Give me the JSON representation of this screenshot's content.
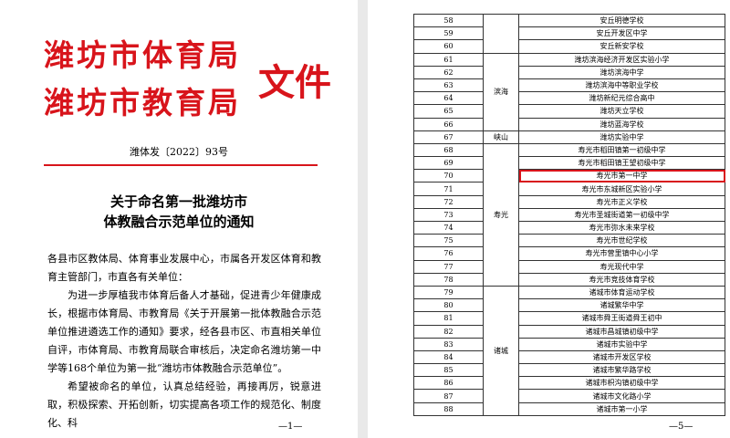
{
  "left_page": {
    "header": {
      "line1": "潍坊市体育局",
      "line2": "潍坊市教育局",
      "suffix": "文件"
    },
    "doc_number": "潍体发〔2022〕93号",
    "title": {
      "line1": "关于命名第一批潍坊市",
      "line2": "体教融合示范单位的通知"
    },
    "paragraphs": [
      "各县市区教体局、体育事业发展中心，市属各开发区体育和教育主管部门，市直各有关单位：",
      "为进一步厚植我市体育后备人才基础，促进青少年健康成长，根据市体育局、市教育局《关于开展第一批体教融合示范单位推进遴选工作的通知》要求，经各县市区、市直相关单位自评，市体育局、市教育局联合审核后，决定命名潍坊第一中学等168个单位为第一批“潍坊市体教融合示范单位”。",
      "希望被命名的单位，认真总结经验，再接再厉，锐意进取，积极探索、开拓创新，切实提高各项工作的规范化、制度化、科"
    ],
    "page_number": "—1—"
  },
  "right_page": {
    "groups": [
      {
        "region": null,
        "rows": [
          [
            "58",
            "安丘明德学校"
          ],
          [
            "59",
            "安丘开发区中学"
          ],
          [
            "60",
            "安丘新安学校"
          ]
        ]
      },
      {
        "region": "滨海",
        "rows": [
          [
            "61",
            "潍坊滨海经济开发区实验小学"
          ],
          [
            "62",
            "潍坊滨海中学"
          ],
          [
            "63",
            "潍坊滨海中等职业学校"
          ],
          [
            "64",
            "潍坊新纪元综合高中"
          ],
          [
            "65",
            "潍坊天立学校"
          ],
          [
            "66",
            "潍坊蓝海学校"
          ]
        ]
      },
      {
        "region": "峡山",
        "rows": [
          [
            "67",
            "潍坊实验中学"
          ]
        ]
      },
      {
        "region": "寿光",
        "rows": [
          [
            "68",
            "寿光市稻田镇第一初级中学"
          ],
          [
            "69",
            "寿光市稻田镇王望初级中学"
          ],
          [
            "70",
            "寿光市第一中学"
          ],
          [
            "71",
            "寿光市东城新区实验小学"
          ],
          [
            "72",
            "寿光市正义学校"
          ],
          [
            "73",
            "寿光市圣城街道第一初级中学"
          ],
          [
            "74",
            "寿光市弥水未来学校"
          ],
          [
            "75",
            "寿光市世纪学校"
          ],
          [
            "76",
            "寿光市营里镇中心小学"
          ],
          [
            "77",
            "寿光现代中学"
          ],
          [
            "78",
            "寿光市竞技体育学校"
          ]
        ]
      },
      {
        "region": "诸城",
        "rows": [
          [
            "79",
            "诸城市体育运动学校"
          ],
          [
            "80",
            "诸城繁华中学"
          ],
          [
            "81",
            "诸城市舜王街道舜王初中"
          ],
          [
            "82",
            "诸城市昌城镇初级中学"
          ],
          [
            "83",
            "诸城市实验中学"
          ],
          [
            "84",
            "诸城市开发区学校"
          ],
          [
            "85",
            "诸城市繁华路学校"
          ],
          [
            "86",
            "诸城市枳沟镇初级中学"
          ],
          [
            "87",
            "诸城市文化路小学"
          ],
          [
            "88",
            "诸城市第一小学"
          ]
        ]
      }
    ],
    "highlighted": "70",
    "page_number": "—5—"
  }
}
